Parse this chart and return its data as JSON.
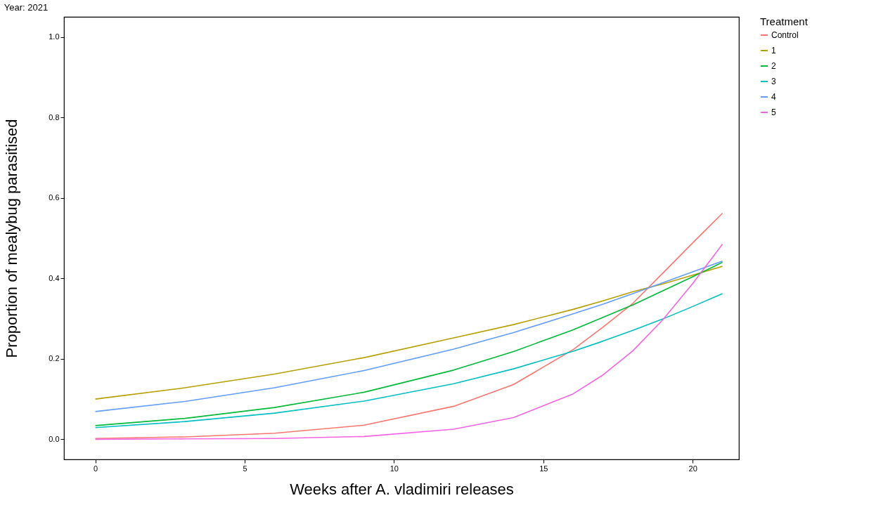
{
  "chart_data": {
    "type": "line",
    "title": "Year: 2021",
    "xlabel": "Weeks after A. vladimiri releases",
    "ylabel": "Proportion of mealybug parasitised",
    "legend_title": "Treatment",
    "x": [
      0,
      3,
      6,
      9,
      12,
      14,
      16,
      17,
      18,
      19,
      20,
      21
    ],
    "series": [
      {
        "name": "Control",
        "color": "#f8766d",
        "values": [
          0.002,
          0.006,
          0.015,
          0.035,
          0.082,
          0.136,
          0.223,
          0.279,
          0.338,
          0.413,
          0.488,
          0.562
        ]
      },
      {
        "name": "1",
        "color": "#b79f00",
        "values": [
          0.1,
          0.128,
          0.162,
          0.203,
          0.252,
          0.285,
          0.323,
          0.344,
          0.367,
          0.386,
          0.408,
          0.43
        ]
      },
      {
        "name": "2",
        "color": "#00ba38",
        "values": [
          0.034,
          0.052,
          0.079,
          0.117,
          0.172,
          0.218,
          0.272,
          0.303,
          0.334,
          0.369,
          0.404,
          0.44
        ]
      },
      {
        "name": "3",
        "color": "#00bfc4",
        "values": [
          0.029,
          0.044,
          0.065,
          0.095,
          0.138,
          0.175,
          0.219,
          0.244,
          0.271,
          0.299,
          0.33,
          0.362
        ]
      },
      {
        "name": "4",
        "color": "#619cff",
        "values": [
          0.069,
          0.094,
          0.128,
          0.171,
          0.224,
          0.265,
          0.312,
          0.336,
          0.362,
          0.389,
          0.416,
          0.443
        ]
      },
      {
        "name": "5",
        "color": "#f564e3",
        "values": [
          0.0,
          0.001,
          0.002,
          0.007,
          0.025,
          0.054,
          0.113,
          0.16,
          0.22,
          0.297,
          0.387,
          0.485
        ]
      }
    ],
    "xlim": [
      -1.05,
      21.55
    ],
    "ylim": [
      -0.05,
      1.05
    ],
    "xticks": [
      0,
      5,
      10,
      15,
      20
    ],
    "yticks": [
      {
        "value": 0,
        "label": "0.0"
      },
      {
        "value": 0.2,
        "label": "0.2"
      },
      {
        "value": 0.4,
        "label": "0.4"
      },
      {
        "value": 0.6,
        "label": "0.6"
      },
      {
        "value": 0.8,
        "label": "0.8"
      },
      {
        "value": 1,
        "label": "1.0"
      }
    ],
    "grid": false,
    "legend": "right",
    "marker": "none",
    "line_style": "solid"
  }
}
